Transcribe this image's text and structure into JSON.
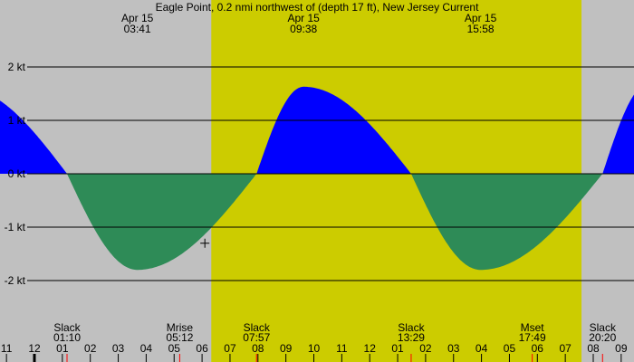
{
  "colors": {
    "background": "#c0c0c0",
    "daylight": "#cccc00",
    "ebb": "#0000ff",
    "flood": "#2e8b57",
    "grid": "#000000",
    "event_tick": "#ff0000"
  },
  "chart_data": {
    "type": "area",
    "title": "Eagle Point, 0.2 nmi northwest of (depth 17 ft), New Jersey Current",
    "y_unit": "kt",
    "ylim": [
      -3.2,
      3.1
    ],
    "y_ticks": [
      {
        "v": 2,
        "label": "2 kt"
      },
      {
        "v": 1,
        "label": "1 kt"
      },
      {
        "v": 0,
        "label": "0 kt"
      },
      {
        "v": -1,
        "label": "-1 kt"
      },
      {
        "v": -2,
        "label": "-2 kt"
      }
    ],
    "x_range_hours": [
      -1.23,
      21.5
    ],
    "x_ticks": [
      {
        "h": -1,
        "label": "11"
      },
      {
        "h": 0,
        "label": "12"
      },
      {
        "h": 1,
        "label": "01"
      },
      {
        "h": 2,
        "label": "02"
      },
      {
        "h": 3,
        "label": "03"
      },
      {
        "h": 4,
        "label": "04"
      },
      {
        "h": 5,
        "label": "05"
      },
      {
        "h": 6,
        "label": "06"
      },
      {
        "h": 7,
        "label": "07"
      },
      {
        "h": 8,
        "label": "08"
      },
      {
        "h": 9,
        "label": "09"
      },
      {
        "h": 10,
        "label": "10"
      },
      {
        "h": 11,
        "label": "11"
      },
      {
        "h": 12,
        "label": "12"
      },
      {
        "h": 13,
        "label": "01"
      },
      {
        "h": 14,
        "label": "02"
      },
      {
        "h": 15,
        "label": "03"
      },
      {
        "h": 16,
        "label": "04"
      },
      {
        "h": 17,
        "label": "05"
      },
      {
        "h": 18,
        "label": "06"
      },
      {
        "h": 19,
        "label": "07"
      },
      {
        "h": 20,
        "label": "08"
      },
      {
        "h": 21,
        "label": "09"
      }
    ],
    "daylight_hours": [
      6.33,
      19.58
    ],
    "curve_points": [
      {
        "h": -2.5,
        "v": 1.6
      },
      {
        "h": 1.167,
        "v": 0
      },
      {
        "h": 3.683,
        "v": -1.8
      },
      {
        "h": 7.95,
        "v": 0
      },
      {
        "h": 9.633,
        "v": 1.63
      },
      {
        "h": 13.483,
        "v": 0
      },
      {
        "h": 15.967,
        "v": -1.8
      },
      {
        "h": 20.333,
        "v": 0
      },
      {
        "h": 22.0,
        "v": 1.7
      }
    ],
    "top_labels": [
      {
        "h": 3.683,
        "date": "Apr 15",
        "time": "03:41"
      },
      {
        "h": 9.633,
        "date": "Apr 15",
        "time": "09:38"
      },
      {
        "h": 15.967,
        "date": "Apr 15",
        "time": "15:58"
      },
      {
        "h": 22.4,
        "date": "Apr 15",
        "time": ""
      }
    ],
    "bottom_events": [
      {
        "h": 1.167,
        "name": "Slack",
        "time": "01:10"
      },
      {
        "h": 5.2,
        "name": "Mrise",
        "time": "05:12"
      },
      {
        "h": 7.95,
        "name": "Slack",
        "time": "07:57"
      },
      {
        "h": 13.483,
        "name": "Slack",
        "time": "13:29"
      },
      {
        "h": 17.817,
        "name": "Mset",
        "time": "17:49"
      },
      {
        "h": 20.333,
        "name": "Slack",
        "time": "20:20"
      }
    ],
    "cursor_marker": {
      "h": 6.1,
      "v": -1.3
    }
  }
}
